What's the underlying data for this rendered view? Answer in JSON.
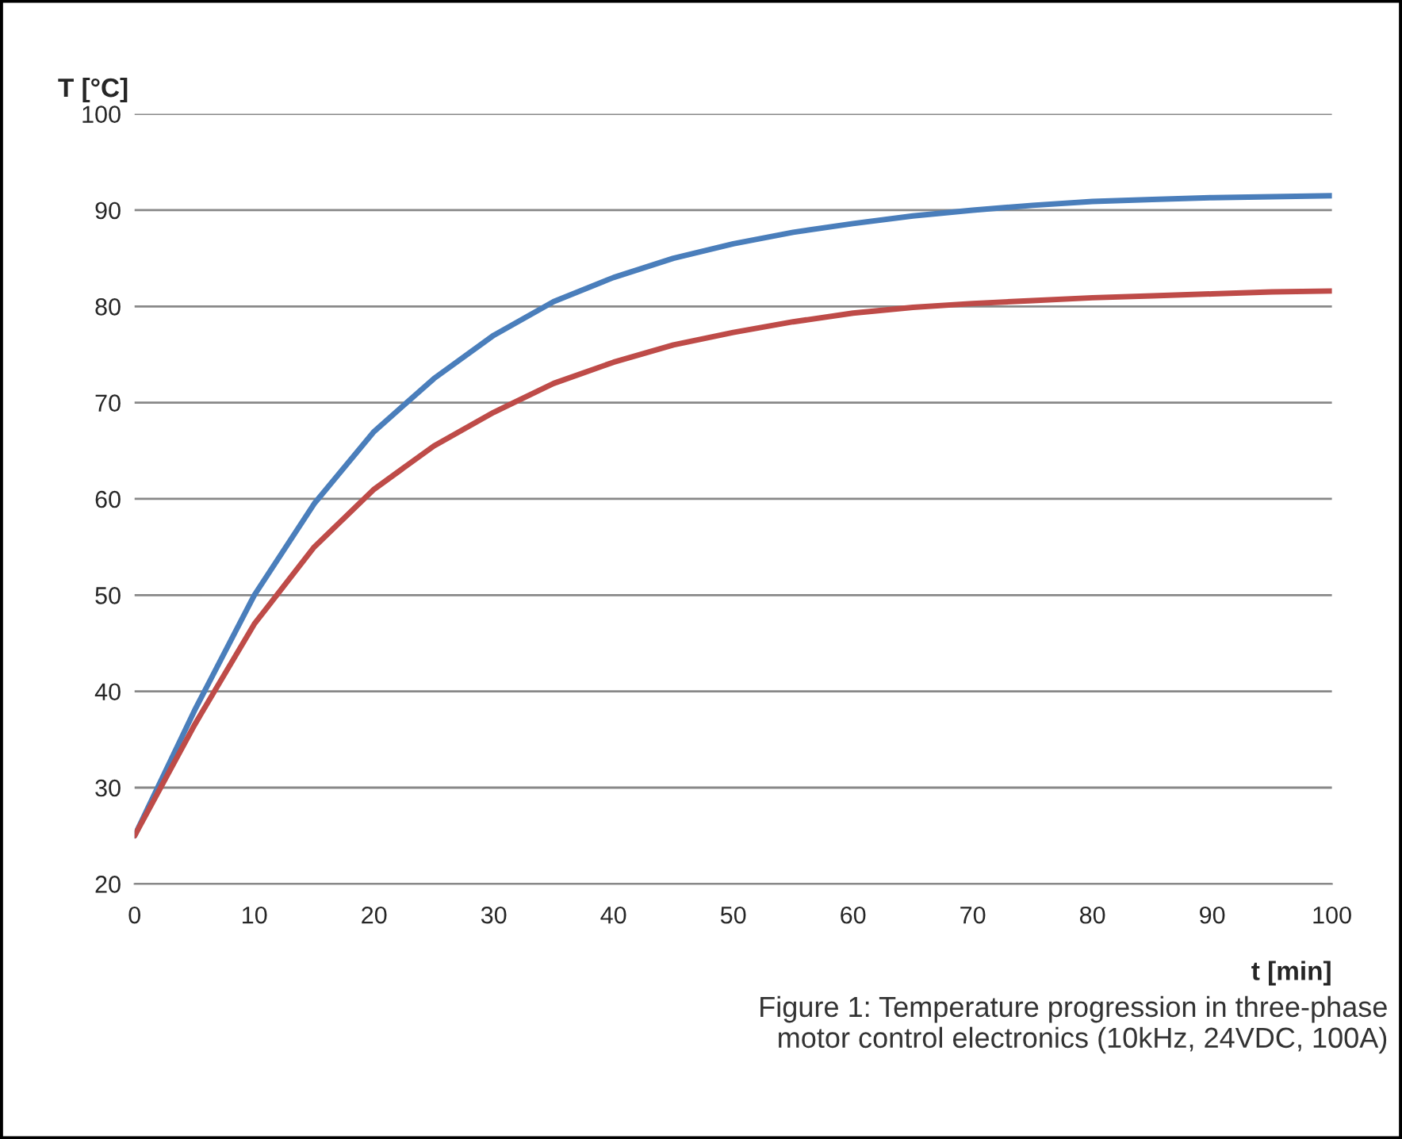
{
  "chart_data": {
    "type": "line",
    "xlabel": "t [min]",
    "ylabel": "T [°C]",
    "x": [
      0,
      5,
      10,
      15,
      20,
      25,
      30,
      35,
      40,
      45,
      50,
      55,
      60,
      65,
      70,
      75,
      80,
      85,
      90,
      95,
      100
    ],
    "series": [
      {
        "color": "#4a7ebb",
        "values": [
          25,
          38,
          50,
          59.5,
          67,
          72.5,
          77,
          80.5,
          83,
          85,
          86.5,
          87.7,
          88.6,
          89.4,
          90,
          90.5,
          90.9,
          91.1,
          91.3,
          91.4,
          91.5
        ]
      },
      {
        "color": "#be4b48",
        "values": [
          25,
          36.5,
          47,
          55,
          61,
          65.5,
          69,
          72,
          74.2,
          76,
          77.3,
          78.4,
          79.3,
          79.9,
          80.3,
          80.6,
          80.9,
          81.1,
          81.3,
          81.5,
          81.6
        ]
      }
    ],
    "xlim": [
      0,
      100
    ],
    "xticks": [
      0,
      10,
      20,
      30,
      40,
      50,
      60,
      70,
      80,
      90,
      100
    ],
    "ylim": [
      20,
      100
    ],
    "yticks": [
      20,
      30,
      40,
      50,
      60,
      70,
      80,
      90,
      100
    ],
    "grid": "y",
    "marker": "none",
    "line_style": "solid",
    "legend": false,
    "annotations": [
      "Figure 1: Temperature progression in three-phase\nmotor control electronics (10kHz, 24VDC, 100A)"
    ]
  }
}
